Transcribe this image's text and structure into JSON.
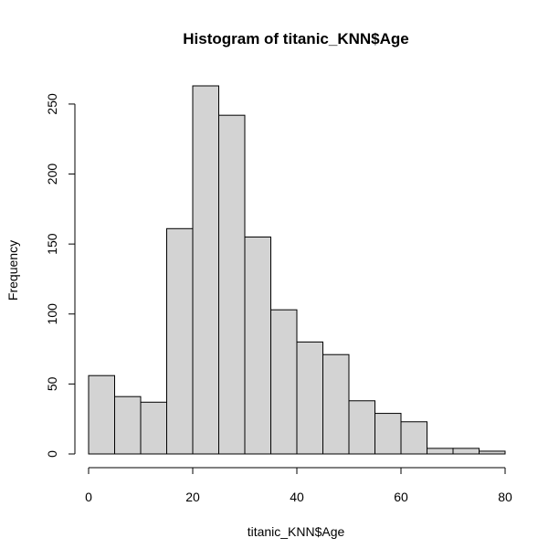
{
  "chart_data": {
    "type": "bar",
    "title": "Histogram of titanic_KNN$Age",
    "xlabel": "titanic_KNN$Age",
    "ylabel": "Frequency",
    "bins": [
      {
        "start": 0,
        "end": 5,
        "value": 56
      },
      {
        "start": 5,
        "end": 10,
        "value": 41
      },
      {
        "start": 10,
        "end": 15,
        "value": 37
      },
      {
        "start": 15,
        "end": 20,
        "value": 161
      },
      {
        "start": 20,
        "end": 25,
        "value": 263
      },
      {
        "start": 25,
        "end": 30,
        "value": 242
      },
      {
        "start": 30,
        "end": 35,
        "value": 155
      },
      {
        "start": 35,
        "end": 40,
        "value": 103
      },
      {
        "start": 40,
        "end": 45,
        "value": 80
      },
      {
        "start": 45,
        "end": 50,
        "value": 71
      },
      {
        "start": 50,
        "end": 55,
        "value": 38
      },
      {
        "start": 55,
        "end": 60,
        "value": 29
      },
      {
        "start": 60,
        "end": 65,
        "value": 23
      },
      {
        "start": 65,
        "end": 70,
        "value": 4
      },
      {
        "start": 70,
        "end": 75,
        "value": 4
      },
      {
        "start": 75,
        "end": 80,
        "value": 2
      }
    ],
    "xlim": [
      0,
      80
    ],
    "ylim": [
      0,
      263
    ],
    "x_ticks": [
      0,
      20,
      40,
      60,
      80
    ],
    "y_ticks": [
      0,
      50,
      100,
      150,
      200,
      250
    ],
    "grid": false,
    "legend": "none",
    "bar_color": "#d3d3d3",
    "border_color": "#000000"
  }
}
